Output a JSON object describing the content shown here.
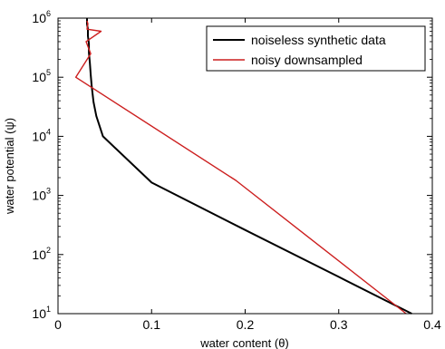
{
  "chart_data": {
    "type": "line",
    "xlabel": "water content (θ)",
    "ylabel": "water potential (ψ)",
    "xlim": [
      0,
      0.4
    ],
    "ylim": [
      10,
      1000000
    ],
    "yscale": "log",
    "x_ticks": [
      0,
      0.1,
      0.2,
      0.3,
      0.4
    ],
    "x_tick_labels": [
      "0",
      "0.1",
      "0.2",
      "0.3",
      "0.4"
    ],
    "y_ticks": [
      10,
      100,
      1000,
      10000,
      100000,
      1000000
    ],
    "y_tick_labels": [
      {
        "base": "10",
        "exp": "1"
      },
      {
        "base": "10",
        "exp": "2"
      },
      {
        "base": "10",
        "exp": "3"
      },
      {
        "base": "10",
        "exp": "4"
      },
      {
        "base": "10",
        "exp": "5"
      },
      {
        "base": "10",
        "exp": "6"
      }
    ],
    "grid": false,
    "legend_position": "top-right",
    "series": [
      {
        "name": "noiseless synthetic data",
        "color": "#000000",
        "x": [
          0.378,
          0.3,
          0.2,
          0.1,
          0.048,
          0.041,
          0.038,
          0.036,
          0.035,
          0.034,
          0.033,
          0.033,
          0.032,
          0.032,
          0.031,
          0.031
        ],
        "y": [
          10,
          42,
          260,
          1650,
          10000,
          22000,
          38000,
          70000,
          110000,
          180000,
          260000,
          370000,
          500000,
          650000,
          800000,
          1000000
        ]
      },
      {
        "name": "noisy downsampled",
        "color": "#cc1e1e",
        "x": [
          0.372,
          0.19,
          0.019,
          0.035,
          0.033,
          0.03,
          0.046,
          0.031,
          0.032,
          0.031
        ],
        "y": [
          10,
          1800,
          100000,
          250000,
          300000,
          400000,
          600000,
          650000,
          800000,
          900000
        ]
      }
    ]
  }
}
